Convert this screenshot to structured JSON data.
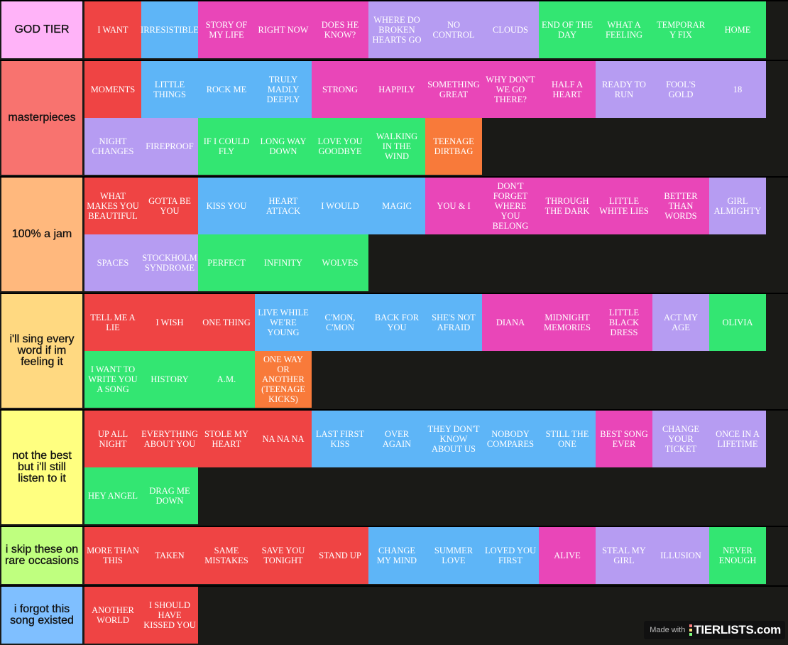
{
  "colors": {
    "red": "#ef4444",
    "blue": "#5eb5f7",
    "pink": "#e946b8",
    "lavender": "#b69cf2",
    "green": "#33e672",
    "orange": "#f87a3a",
    "background": "#1a1a17"
  },
  "tiers": [
    {
      "label": "GOD TIER",
      "color": "#ffb3f8",
      "items": [
        {
          "title": "I WANT",
          "color": "red"
        },
        {
          "title": "IRRESISTIBLE",
          "color": "blue"
        },
        {
          "title": "STORY OF MY LIFE",
          "color": "pink"
        },
        {
          "title": "RIGHT NOW",
          "color": "pink"
        },
        {
          "title": "DOES HE KNOW?",
          "color": "pink"
        },
        {
          "title": "WHERE DO BROKEN HEARTS GO",
          "color": "lavender"
        },
        {
          "title": "NO CONTROL",
          "color": "lavender"
        },
        {
          "title": "CLOUDS",
          "color": "lavender"
        },
        {
          "title": "END OF THE DAY",
          "color": "green"
        },
        {
          "title": "WHAT A FEELING",
          "color": "green"
        },
        {
          "title": "TEMPORARY FIX",
          "color": "green"
        },
        {
          "title": "HOME",
          "color": "green"
        }
      ]
    },
    {
      "label": "masterpieces",
      "color": "#f8736f",
      "items": [
        {
          "title": "MOMENTS",
          "color": "red"
        },
        {
          "title": "LITTLE THINGS",
          "color": "blue"
        },
        {
          "title": "ROCK ME",
          "color": "blue"
        },
        {
          "title": "TRULY MADLY DEEPLY",
          "color": "blue"
        },
        {
          "title": "STRONG",
          "color": "pink"
        },
        {
          "title": "HAPPILY",
          "color": "pink"
        },
        {
          "title": "SOMETHING GREAT",
          "color": "pink"
        },
        {
          "title": "WHY DON'T WE GO THERE?",
          "color": "pink"
        },
        {
          "title": "HALF A HEART",
          "color": "pink"
        },
        {
          "title": "READY TO RUN",
          "color": "lavender"
        },
        {
          "title": "FOOL'S GOLD",
          "color": "lavender"
        },
        {
          "title": "18",
          "color": "lavender"
        },
        {
          "title": "NIGHT CHANGES",
          "color": "lavender"
        },
        {
          "title": "FIREPROOF",
          "color": "lavender"
        },
        {
          "title": "IF I COULD FLY",
          "color": "green"
        },
        {
          "title": "LONG WAY DOWN",
          "color": "green"
        },
        {
          "title": "LOVE YOU GOODBYE",
          "color": "green"
        },
        {
          "title": "WALKING IN THE WIND",
          "color": "green"
        },
        {
          "title": "TEENAGE DIRTBAG",
          "color": "orange"
        }
      ]
    },
    {
      "label": "100% a jam",
      "color": "#ffb87d",
      "items": [
        {
          "title": "WHAT MAKES YOU BEAUTIFUL",
          "color": "red"
        },
        {
          "title": "GOTTA BE YOU",
          "color": "red"
        },
        {
          "title": "KISS YOU",
          "color": "blue"
        },
        {
          "title": "HEART ATTACK",
          "color": "blue"
        },
        {
          "title": "I WOULD",
          "color": "blue"
        },
        {
          "title": "MAGIC",
          "color": "blue"
        },
        {
          "title": "YOU & I",
          "color": "pink"
        },
        {
          "title": "DON'T FORGET WHERE YOU BELONG",
          "color": "pink"
        },
        {
          "title": "THROUGH THE DARK",
          "color": "pink"
        },
        {
          "title": "LITTLE WHITE LIES",
          "color": "pink"
        },
        {
          "title": "BETTER THAN WORDS",
          "color": "pink"
        },
        {
          "title": "GIRL ALMIGHTY",
          "color": "lavender"
        },
        {
          "title": "SPACES",
          "color": "lavender"
        },
        {
          "title": "STOCKHOLM SYNDROME",
          "color": "lavender"
        },
        {
          "title": "PERFECT",
          "color": "green"
        },
        {
          "title": "INFINITY",
          "color": "green"
        },
        {
          "title": "WOLVES",
          "color": "green"
        }
      ]
    },
    {
      "label": "i'll sing every word if im feeling it",
      "color": "#ffd981",
      "items": [
        {
          "title": "TELL ME A LIE",
          "color": "red"
        },
        {
          "title": "I WISH",
          "color": "red"
        },
        {
          "title": "ONE THING",
          "color": "red"
        },
        {
          "title": "LIVE WHILE WE'RE YOUNG",
          "color": "blue"
        },
        {
          "title": "C'MON, C'MON",
          "color": "blue"
        },
        {
          "title": "BACK FOR YOU",
          "color": "blue"
        },
        {
          "title": "SHE'S NOT AFRAID",
          "color": "blue"
        },
        {
          "title": "DIANA",
          "color": "pink"
        },
        {
          "title": "MIDNIGHT MEMORIES",
          "color": "pink"
        },
        {
          "title": "LITTLE BLACK DRESS",
          "color": "pink"
        },
        {
          "title": "ACT MY AGE",
          "color": "lavender"
        },
        {
          "title": "OLIVIA",
          "color": "green"
        },
        {
          "title": "I WANT TO WRITE YOU A SONG",
          "color": "green"
        },
        {
          "title": "HISTORY",
          "color": "green"
        },
        {
          "title": "A.M.",
          "color": "green"
        },
        {
          "title": "ONE WAY OR ANOTHER (TEENAGE KICKS)",
          "color": "orange"
        }
      ]
    },
    {
      "label": "not the best but i'll still listen to it",
      "color": "#ffff80",
      "items": [
        {
          "title": "UP ALL NIGHT",
          "color": "red"
        },
        {
          "title": "EVERYTHING ABOUT YOU",
          "color": "red"
        },
        {
          "title": "STOLE MY HEART",
          "color": "red"
        },
        {
          "title": "NA NA NA",
          "color": "red"
        },
        {
          "title": "LAST FIRST KISS",
          "color": "blue"
        },
        {
          "title": "OVER AGAIN",
          "color": "blue"
        },
        {
          "title": "THEY DON'T KNOW ABOUT US",
          "color": "blue"
        },
        {
          "title": "NOBODY COMPARES",
          "color": "blue"
        },
        {
          "title": "STILL THE ONE",
          "color": "blue"
        },
        {
          "title": "BEST SONG EVER",
          "color": "pink"
        },
        {
          "title": "CHANGE YOUR TICKET",
          "color": "lavender"
        },
        {
          "title": "ONCE IN A LIFETIME",
          "color": "lavender"
        },
        {
          "title": "HEY ANGEL",
          "color": "green"
        },
        {
          "title": "DRAG ME DOWN",
          "color": "green"
        }
      ]
    },
    {
      "label": "i skip these on rare occasions",
      "color": "#bfff7f",
      "items": [
        {
          "title": "MORE THAN THIS",
          "color": "red"
        },
        {
          "title": "TAKEN",
          "color": "red"
        },
        {
          "title": "SAME MISTAKES",
          "color": "red"
        },
        {
          "title": "SAVE YOU TONIGHT",
          "color": "red"
        },
        {
          "title": "STAND UP",
          "color": "red"
        },
        {
          "title": "CHANGE MY MIND",
          "color": "blue"
        },
        {
          "title": "SUMMER LOVE",
          "color": "blue"
        },
        {
          "title": "LOVED YOU FIRST",
          "color": "blue"
        },
        {
          "title": "ALIVE",
          "color": "pink"
        },
        {
          "title": "STEAL MY GIRL",
          "color": "lavender"
        },
        {
          "title": "ILLUSION",
          "color": "lavender"
        },
        {
          "title": "NEVER ENOUGH",
          "color": "green"
        }
      ]
    },
    {
      "label": "i forgot this song existed",
      "color": "#7fbfff",
      "items": [
        {
          "title": "ANOTHER WORLD",
          "color": "red"
        },
        {
          "title": "I SHOULD HAVE KISSED YOU",
          "color": "red"
        }
      ]
    }
  ],
  "watermark": {
    "made_with": "Made with",
    "brand": "TIERLISTS.com"
  }
}
